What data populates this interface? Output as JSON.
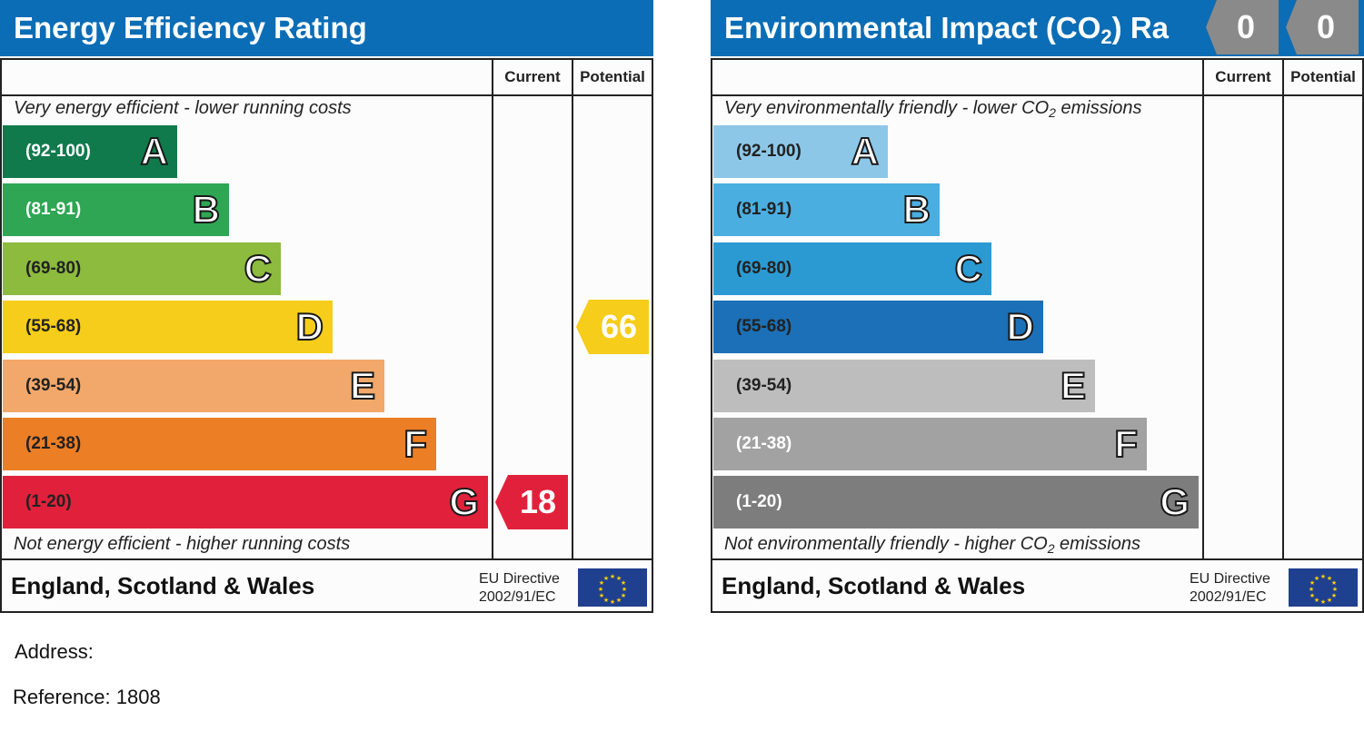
{
  "energy": {
    "title": "Energy Efficiency Rating",
    "col_current": "Current",
    "col_potential": "Potential",
    "note_top": "Very energy efficient - lower running costs",
    "note_bottom": "Not energy efficient - higher running costs",
    "footer": "England, Scotland & Wales",
    "eu_line1": "EU Directive",
    "eu_line2": "2002/91/EC",
    "bands": [
      {
        "range": "(92-100)",
        "letter": "A",
        "color": "#117a4d",
        "text_color": "#ffffff"
      },
      {
        "range": "(81-91)",
        "letter": "B",
        "color": "#2ea654",
        "text_color": "#ffffff"
      },
      {
        "range": "(69-80)",
        "letter": "C",
        "color": "#8cbb3e",
        "text_color": "#222222"
      },
      {
        "range": "(55-68)",
        "letter": "D",
        "color": "#f5cd1a",
        "text_color": "#222222"
      },
      {
        "range": "(39-54)",
        "letter": "E",
        "color": "#f2a86a",
        "text_color": "#222222"
      },
      {
        "range": "(21-38)",
        "letter": "F",
        "color": "#ec7e25",
        "text_color": "#222222"
      },
      {
        "range": "(1-20)",
        "letter": "G",
        "color": "#e1213b",
        "text_color": "#222222"
      }
    ],
    "current": {
      "value": "18",
      "band": "G",
      "color": "#e1213b"
    },
    "potential": {
      "value": "66",
      "band": "D",
      "color": "#f5cd1a"
    }
  },
  "environment": {
    "title_main": "Environmental Impact (CO",
    "title_sub": "2",
    "title_tail": ") Ra",
    "col_current": "Current",
    "col_potential": "Potential",
    "note_top_main": "Very environmentally friendly - lower CO",
    "note_top_sub": "2",
    "note_top_tail": " emissions",
    "note_bot_main": "Not environmentally friendly - higher CO",
    "note_bot_sub": "2",
    "note_bot_tail": " emissions",
    "footer": "England, Scotland & Wales",
    "eu_line1": "EU Directive",
    "eu_line2": "2002/91/EC",
    "bands": [
      {
        "range": "(92-100)",
        "letter": "A",
        "color": "#8dc7e8",
        "text_color": "#222222"
      },
      {
        "range": "(81-91)",
        "letter": "B",
        "color": "#4aaee0",
        "text_color": "#222222"
      },
      {
        "range": "(69-80)",
        "letter": "C",
        "color": "#2b9ad3",
        "text_color": "#222222"
      },
      {
        "range": "(55-68)",
        "letter": "D",
        "color": "#1b70b7",
        "text_color": "#222222"
      },
      {
        "range": "(39-54)",
        "letter": "E",
        "color": "#bdbdbd",
        "text_color": "#222222"
      },
      {
        "range": "(21-38)",
        "letter": "F",
        "color": "#a2a2a2",
        "text_color": "#ffffff"
      },
      {
        "range": "(1-20)",
        "letter": "G",
        "color": "#7d7d7d",
        "text_color": "#ffffff"
      }
    ],
    "current": {
      "value": "0",
      "color": "#8a8a8a"
    },
    "potential": {
      "value": "0",
      "color": "#8a8a8a"
    }
  },
  "info": {
    "address_label": "Address:",
    "reference_label": "Reference:",
    "reference_value": "1808"
  },
  "chart_data": [
    {
      "type": "bar",
      "title": "Energy Efficiency Rating",
      "categories": [
        "(92-100)",
        "(81-91)",
        "(69-80)",
        "(55-68)",
        "(39-54)",
        "(21-38)",
        "(1-20)"
      ],
      "letters": [
        "A",
        "B",
        "C",
        "D",
        "E",
        "F",
        "G"
      ],
      "current": 18,
      "potential": 66
    },
    {
      "type": "bar",
      "title": "Environmental Impact (CO2) Ra",
      "categories": [
        "(92-100)",
        "(81-91)",
        "(69-80)",
        "(55-68)",
        "(39-54)",
        "(21-38)",
        "(1-20)"
      ],
      "letters": [
        "A",
        "B",
        "C",
        "D",
        "E",
        "F",
        "G"
      ],
      "current": 0,
      "potential": 0
    }
  ]
}
